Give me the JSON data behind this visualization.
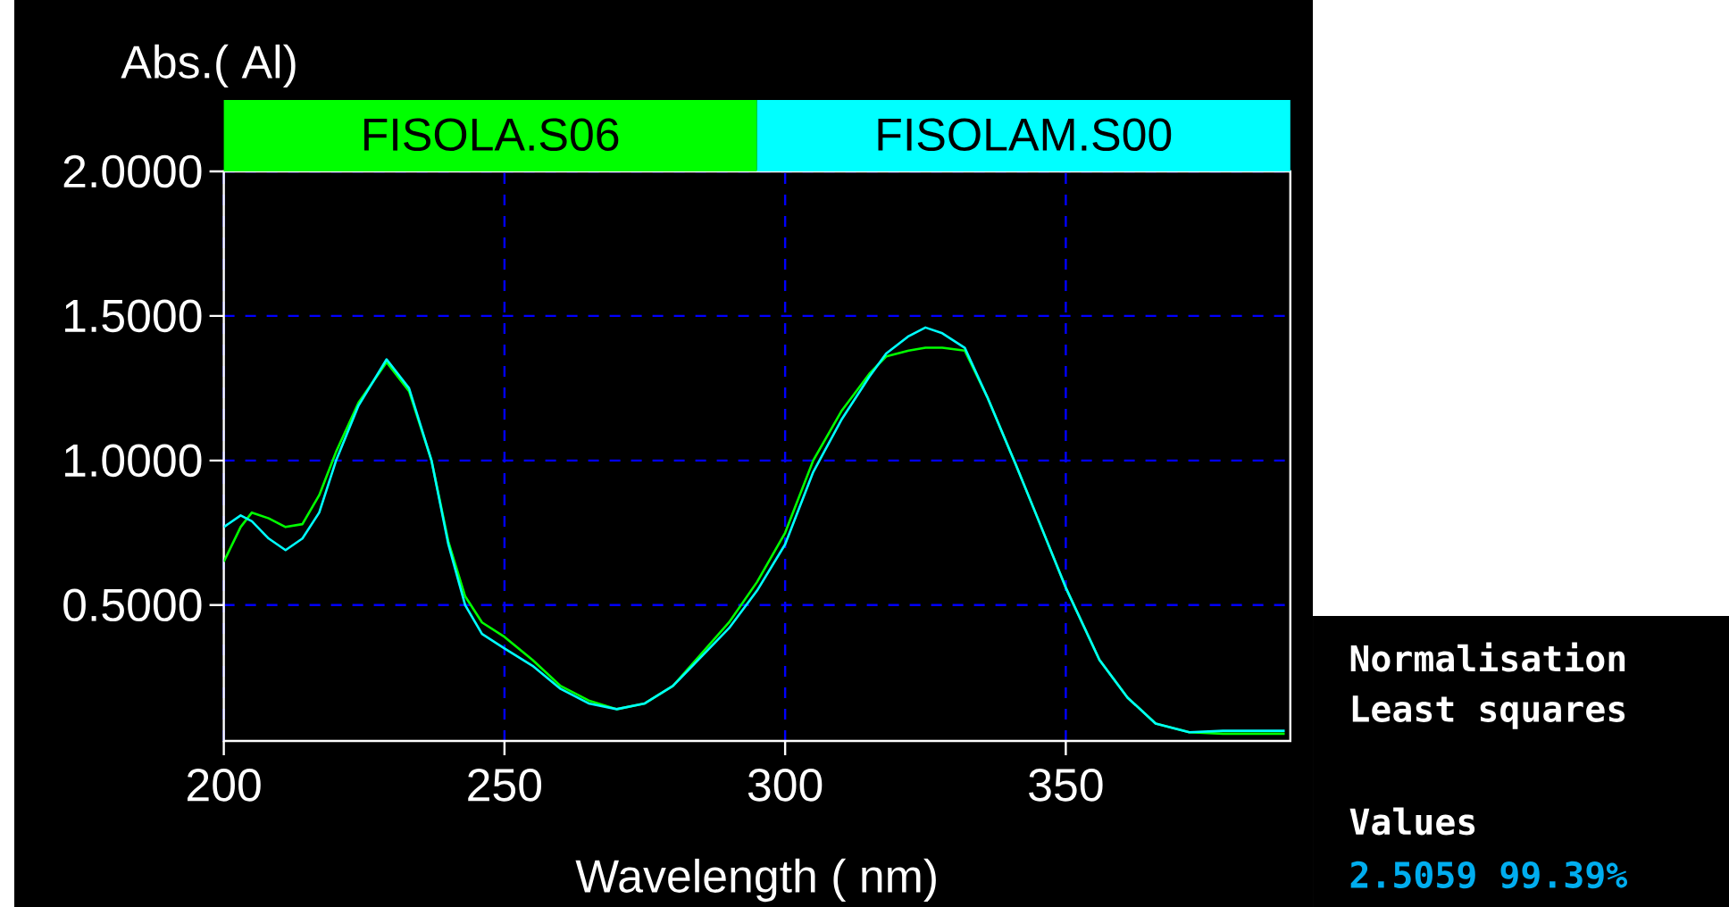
{
  "chart_data": {
    "type": "line",
    "ylabel": "Abs.(  Al)",
    "xlabel": "Wavelength (  nm)",
    "x": [
      200,
      203,
      205,
      208,
      211,
      214,
      217,
      220,
      224,
      229,
      233,
      237,
      240,
      243,
      246,
      250,
      255,
      260,
      265,
      270,
      275,
      280,
      285,
      290,
      295,
      300,
      305,
      310,
      315,
      318,
      322,
      325,
      328,
      332,
      336,
      341,
      345,
      350,
      356,
      361,
      366,
      372,
      378,
      384,
      389
    ],
    "series": [
      {
        "name": "FISOLA.S06",
        "color": "#00ff00",
        "values": [
          0.65,
          0.77,
          0.82,
          0.8,
          0.77,
          0.78,
          0.88,
          1.03,
          1.2,
          1.34,
          1.24,
          1.0,
          0.72,
          0.53,
          0.44,
          0.39,
          0.31,
          0.22,
          0.17,
          0.14,
          0.16,
          0.22,
          0.33,
          0.44,
          0.58,
          0.75,
          1.0,
          1.17,
          1.3,
          1.36,
          1.38,
          1.39,
          1.39,
          1.38,
          1.22,
          0.99,
          0.8,
          0.56,
          0.31,
          0.18,
          0.09,
          0.06,
          0.055,
          0.055,
          0.055
        ]
      },
      {
        "name": "FISOLAM.S00",
        "color": "#00ffff",
        "values": [
          0.77,
          0.81,
          0.79,
          0.73,
          0.69,
          0.73,
          0.82,
          1.0,
          1.19,
          1.35,
          1.25,
          1.0,
          0.71,
          0.5,
          0.4,
          0.35,
          0.29,
          0.21,
          0.16,
          0.14,
          0.16,
          0.22,
          0.32,
          0.42,
          0.55,
          0.71,
          0.96,
          1.14,
          1.29,
          1.37,
          1.43,
          1.46,
          1.44,
          1.39,
          1.22,
          0.99,
          0.8,
          0.56,
          0.31,
          0.18,
          0.09,
          0.06,
          0.065,
          0.065,
          0.065
        ]
      }
    ],
    "xlim": [
      200,
      390
    ],
    "ylim": [
      0.03,
      2.0
    ],
    "xticks": [
      200,
      250,
      300,
      350
    ],
    "yticks": [
      {
        "value": 0.5,
        "label": "0.5000"
      },
      {
        "value": 1.0,
        "label": "1.0000"
      },
      {
        "value": 1.5,
        "label": "1.5000"
      },
      {
        "value": 2.0,
        "label": "2.0000"
      }
    ],
    "grid": true,
    "legend": "top",
    "annotations": [
      "Normalisation",
      "Least squares",
      "Values",
      "2.5059 99.39%"
    ]
  }
}
